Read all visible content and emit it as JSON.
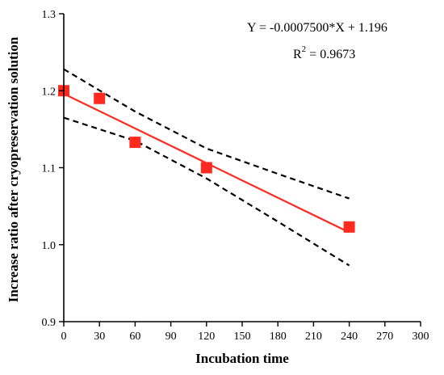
{
  "chart_data": {
    "type": "scatter",
    "xlabel": "Incubation time",
    "ylabel": "Increase ratio after cryopreservation solution",
    "xlim": [
      0,
      300
    ],
    "ylim": [
      0.9,
      1.3
    ],
    "x_ticks": [
      0,
      30,
      60,
      90,
      120,
      150,
      180,
      210,
      240,
      270,
      300
    ],
    "y_ticks": [
      0.9,
      1.0,
      1.1,
      1.2,
      1.3
    ],
    "y_tick_labels": [
      "0.9",
      "1.0",
      "1.1",
      "1.2",
      "1.3"
    ],
    "grid": false,
    "series": [
      {
        "mark": "square",
        "color": "#ff2a1f",
        "points": [
          {
            "x": 0,
            "y": 1.2
          },
          {
            "x": 30,
            "y": 1.19
          },
          {
            "x": 60,
            "y": 1.133
          },
          {
            "x": 120,
            "y": 1.1
          },
          {
            "x": 240,
            "y": 1.023
          }
        ]
      }
    ],
    "fit_line": {
      "color": "#ff2a1f",
      "slope": -0.00075,
      "intercept": 1.196,
      "x_range": [
        0,
        240
      ]
    },
    "confidence_band": {
      "color": "#000000",
      "style": "dashed",
      "upper": [
        [
          0,
          1.228
        ],
        [
          60,
          1.173
        ],
        [
          120,
          1.125
        ],
        [
          180,
          1.092
        ],
        [
          240,
          1.06
        ]
      ],
      "lower": [
        [
          0,
          1.165
        ],
        [
          60,
          1.135
        ],
        [
          120,
          1.086
        ],
        [
          180,
          1.03
        ],
        [
          240,
          0.973
        ]
      ]
    },
    "annotations": {
      "equation": "Y = -0.0007500*X + 1.196",
      "r2_label": "R",
      "r2_sup": "2",
      "r2_value": " = 0.9673"
    }
  }
}
